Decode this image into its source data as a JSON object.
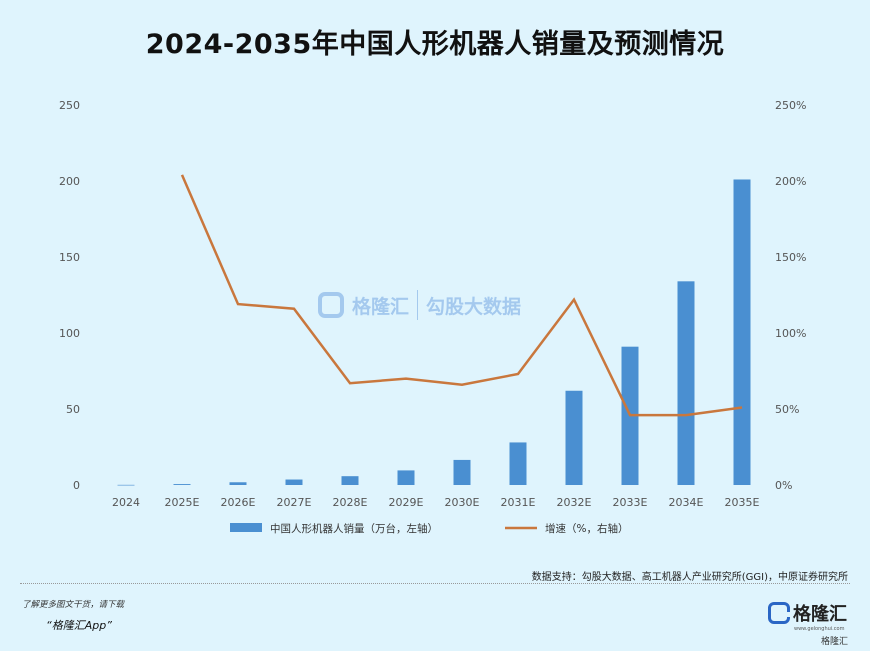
{
  "title": "2024-2035年中国人形机器人销量及预测情况",
  "colors": {
    "bar": "#4a8fd1",
    "line": "#c9773d",
    "background": "#dff4fd"
  },
  "chart_data": {
    "type": "bar",
    "categories": [
      "2024",
      "2025E",
      "2026E",
      "2027E",
      "2028E",
      "2029E",
      "2030E",
      "2031E",
      "2032E",
      "2033E",
      "2034E",
      "2035E"
    ],
    "series": [
      {
        "name": "中国人形机器人销量（万台，左轴）",
        "type": "bar",
        "axis": "left",
        "values": [
          0.1,
          0.6,
          1.8,
          3.6,
          5.8,
          9.6,
          16.5,
          28,
          62,
          91,
          134,
          201
        ]
      },
      {
        "name": "增速（%，右轴）",
        "type": "line",
        "axis": "right",
        "values": [
          null,
          204,
          119,
          116,
          67,
          70,
          66,
          73,
          122,
          46,
          46,
          51
        ]
      }
    ],
    "yleft": {
      "ylim": [
        0,
        250
      ],
      "ticks": [
        0,
        50,
        100,
        150,
        200,
        250
      ]
    },
    "yright": {
      "ylim": [
        0,
        250
      ],
      "ticks": [
        "0%",
        "50%",
        "100%",
        "150%",
        "200%",
        "250%"
      ]
    },
    "grid": false,
    "legend_position": "bottom"
  },
  "source": "数据支持：勾股大数据、高工机器人产业研究所(GGI)，中原证券研究所",
  "footer": {
    "note": "了解更多图文干货，请下载",
    "app": "“格隆汇App”"
  },
  "brand": {
    "name": "格隆汇",
    "url": "www.gelonghui.com",
    "sub": "格隆汇"
  },
  "watermark": {
    "left": "格隆汇",
    "right": "勾股大数据"
  }
}
